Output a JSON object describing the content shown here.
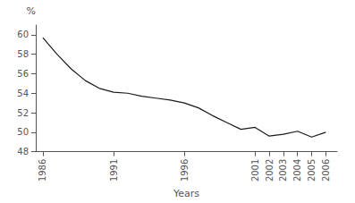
{
  "chart_data": {
    "type": "line",
    "x": [
      1986,
      1987,
      1988,
      1989,
      1990,
      1991,
      1992,
      1993,
      1994,
      1995,
      1996,
      1997,
      1998,
      1999,
      2000,
      2001,
      2002,
      2003,
      2004,
      2005,
      2006
    ],
    "values": [
      59.7,
      58.0,
      56.5,
      55.3,
      54.5,
      54.1,
      54.0,
      53.7,
      53.5,
      53.3,
      53.0,
      52.5,
      51.7,
      51.0,
      50.3,
      50.5,
      49.6,
      49.8,
      50.1,
      49.5,
      50.0
    ],
    "color": "#1a1a1a",
    "xlabel": "Years",
    "ylabel": "%",
    "xlim": [
      1985.5,
      2006.8
    ],
    "ylim": [
      48,
      61
    ],
    "xticks": [
      1986,
      1991,
      1996,
      2001,
      2002,
      2003,
      2004,
      2005,
      2006
    ],
    "yticks": [
      48,
      50,
      52,
      54,
      56,
      58,
      60
    ],
    "grid": false
  }
}
